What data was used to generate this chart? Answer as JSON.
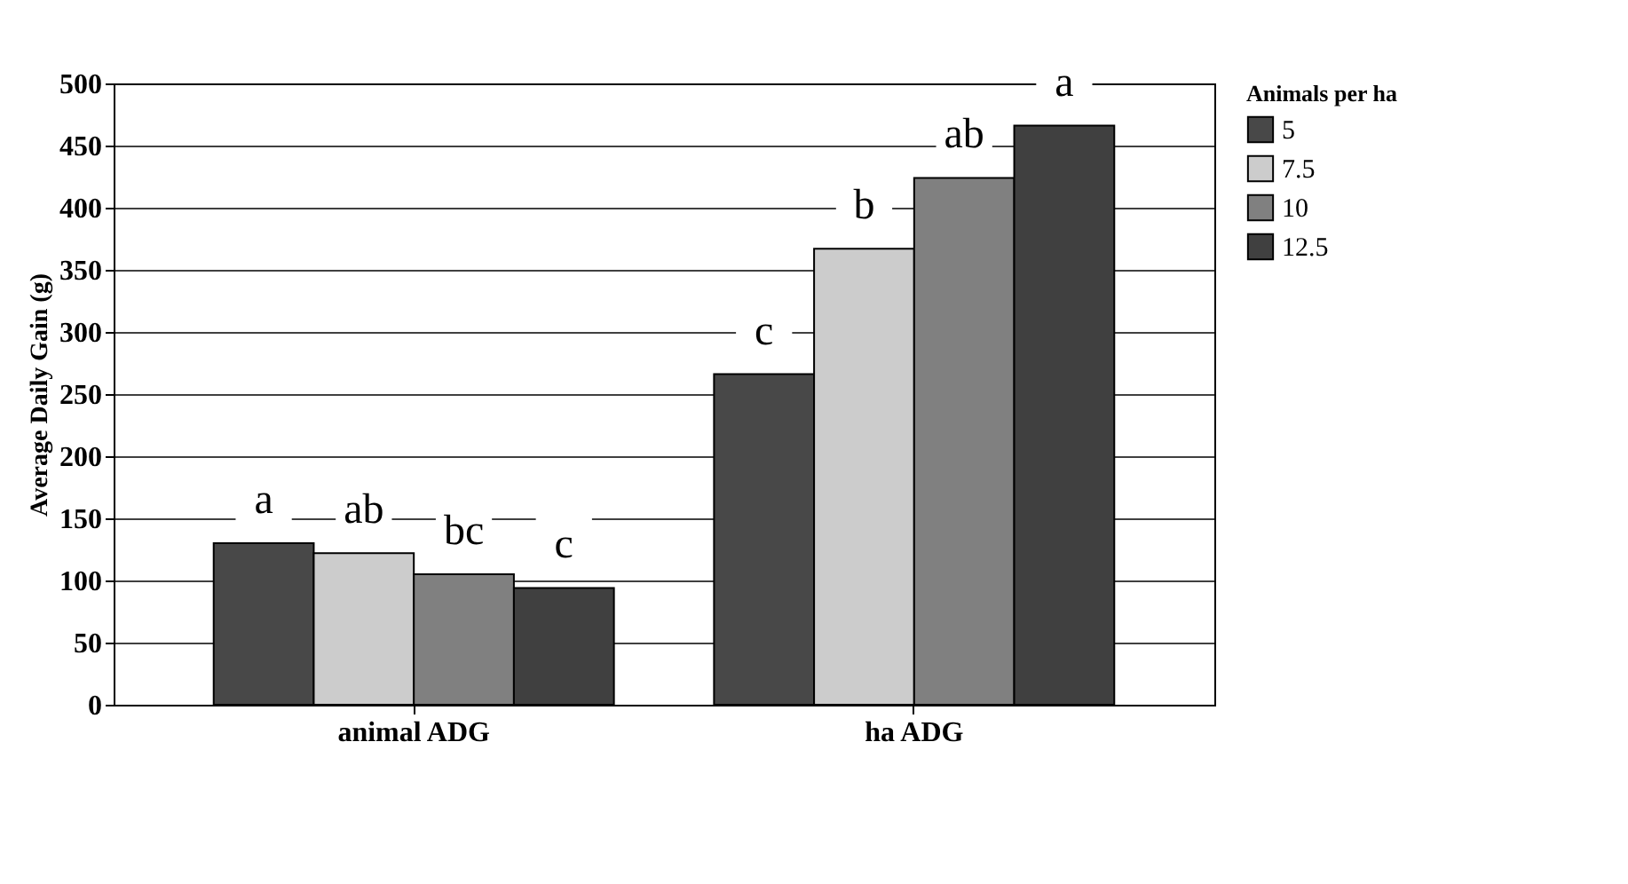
{
  "chart_data": {
    "type": "bar",
    "ylabel": "Average Daily Gain (g)",
    "legend_title": "Animals per ha",
    "categories": [
      "animal ADG",
      "ha ADG"
    ],
    "series": [
      {
        "name": "5",
        "color": "#484848",
        "values": [
          130,
          266
        ],
        "value_labels": [
          "a",
          "c"
        ]
      },
      {
        "name": "7.5",
        "color": "#cccccc",
        "values": [
          122,
          367
        ],
        "value_labels": [
          "ab",
          "b"
        ]
      },
      {
        "name": "10",
        "color": "#808080",
        "values": [
          105,
          424
        ],
        "value_labels": [
          "bc",
          "ab"
        ]
      },
      {
        "name": "12.5",
        "color": "#404040",
        "values": [
          94,
          466
        ],
        "value_labels": [
          "c",
          "a"
        ]
      }
    ],
    "ylim": [
      0,
      500
    ],
    "yticks": [
      0,
      50,
      100,
      150,
      200,
      250,
      300,
      350,
      400,
      450,
      500
    ],
    "grid": "y",
    "legend": "right"
  }
}
